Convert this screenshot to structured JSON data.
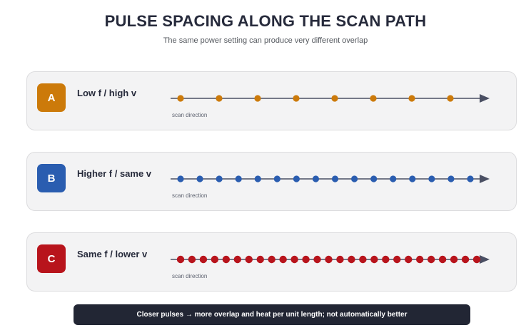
{
  "title": "PULSE SPACING ALONG THE SCAN PATH",
  "subtitle": "The same power setting can produce very different overlap",
  "panels": [
    {
      "badge": "A",
      "label": "Low f / high v",
      "caption": "scan direction",
      "color": "#cc7a0a",
      "pulses": 8
    },
    {
      "badge": "B",
      "label": "Higher f / same v",
      "caption": "scan direction",
      "color": "#2a5db0",
      "pulses": 16
    },
    {
      "badge": "C",
      "label": "Same f / lower v",
      "caption": "scan direction",
      "color": "#b8141c",
      "pulses": 27
    }
  ],
  "footer": "Closer pulses → more overlap and heat per unit length; not automatically better",
  "line_color": "#4a4f63"
}
